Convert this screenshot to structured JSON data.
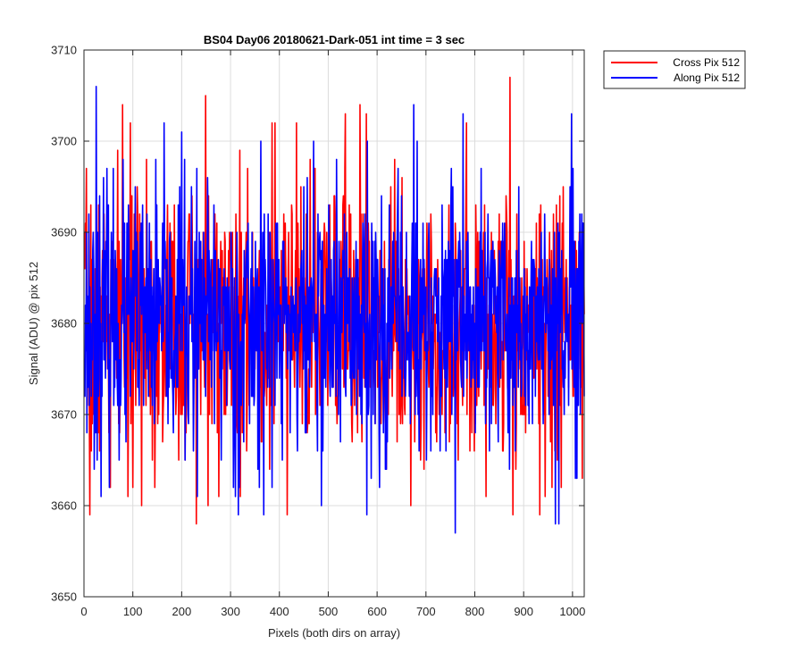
{
  "chart_data": {
    "type": "line",
    "title": "BS04 Day06 20180621-Dark-051 int time = 3 sec",
    "xlabel": "Pixels (both dirs on array)",
    "ylabel": "Signal (ADU) @ pix 512",
    "xlim": [
      0,
      1024
    ],
    "ylim": [
      3650,
      3710
    ],
    "xticks": [
      0,
      100,
      200,
      300,
      400,
      500,
      600,
      700,
      800,
      900,
      1000
    ],
    "yticks": [
      3650,
      3660,
      3670,
      3680,
      3690,
      3700,
      3710
    ],
    "grid": true,
    "legend_position": "outside-top-right",
    "point_count": 1024,
    "x_start": 1,
    "series": [
      {
        "name": "Cross Pix 512",
        "color": "#ff0000",
        "mean": 3680,
        "min": 3658,
        "max": 3707,
        "seed": 7,
        "spikes": [
          {
            "x": 12,
            "y": 3659
          },
          {
            "x": 54,
            "y": 3662
          },
          {
            "x": 79,
            "y": 3704
          },
          {
            "x": 90,
            "y": 3661
          },
          {
            "x": 128,
            "y": 3698
          },
          {
            "x": 230,
            "y": 3658
          },
          {
            "x": 249,
            "y": 3705
          },
          {
            "x": 320,
            "y": 3661
          },
          {
            "x": 385,
            "y": 3702
          },
          {
            "x": 416,
            "y": 3659
          },
          {
            "x": 535,
            "y": 3703
          },
          {
            "x": 565,
            "y": 3704
          },
          {
            "x": 578,
            "y": 3703
          },
          {
            "x": 823,
            "y": 3661
          },
          {
            "x": 872,
            "y": 3707
          },
          {
            "x": 878,
            "y": 3659
          },
          {
            "x": 933,
            "y": 3659
          },
          {
            "x": 958,
            "y": 3662
          },
          {
            "x": 1020,
            "y": 3663
          }
        ]
      },
      {
        "name": "Along Pix 512",
        "color": "#0000ff",
        "mean": 3680,
        "min": 3657,
        "max": 3706,
        "seed": 23,
        "spikes": [
          {
            "x": 25,
            "y": 3706
          },
          {
            "x": 200,
            "y": 3701
          },
          {
            "x": 232,
            "y": 3661
          },
          {
            "x": 316,
            "y": 3659
          },
          {
            "x": 362,
            "y": 3700
          },
          {
            "x": 470,
            "y": 3700
          },
          {
            "x": 580,
            "y": 3700
          },
          {
            "x": 675,
            "y": 3704
          },
          {
            "x": 760,
            "y": 3657
          },
          {
            "x": 776,
            "y": 3703
          },
          {
            "x": 972,
            "y": 3658
          },
          {
            "x": 965,
            "y": 3658
          }
        ]
      }
    ]
  }
}
